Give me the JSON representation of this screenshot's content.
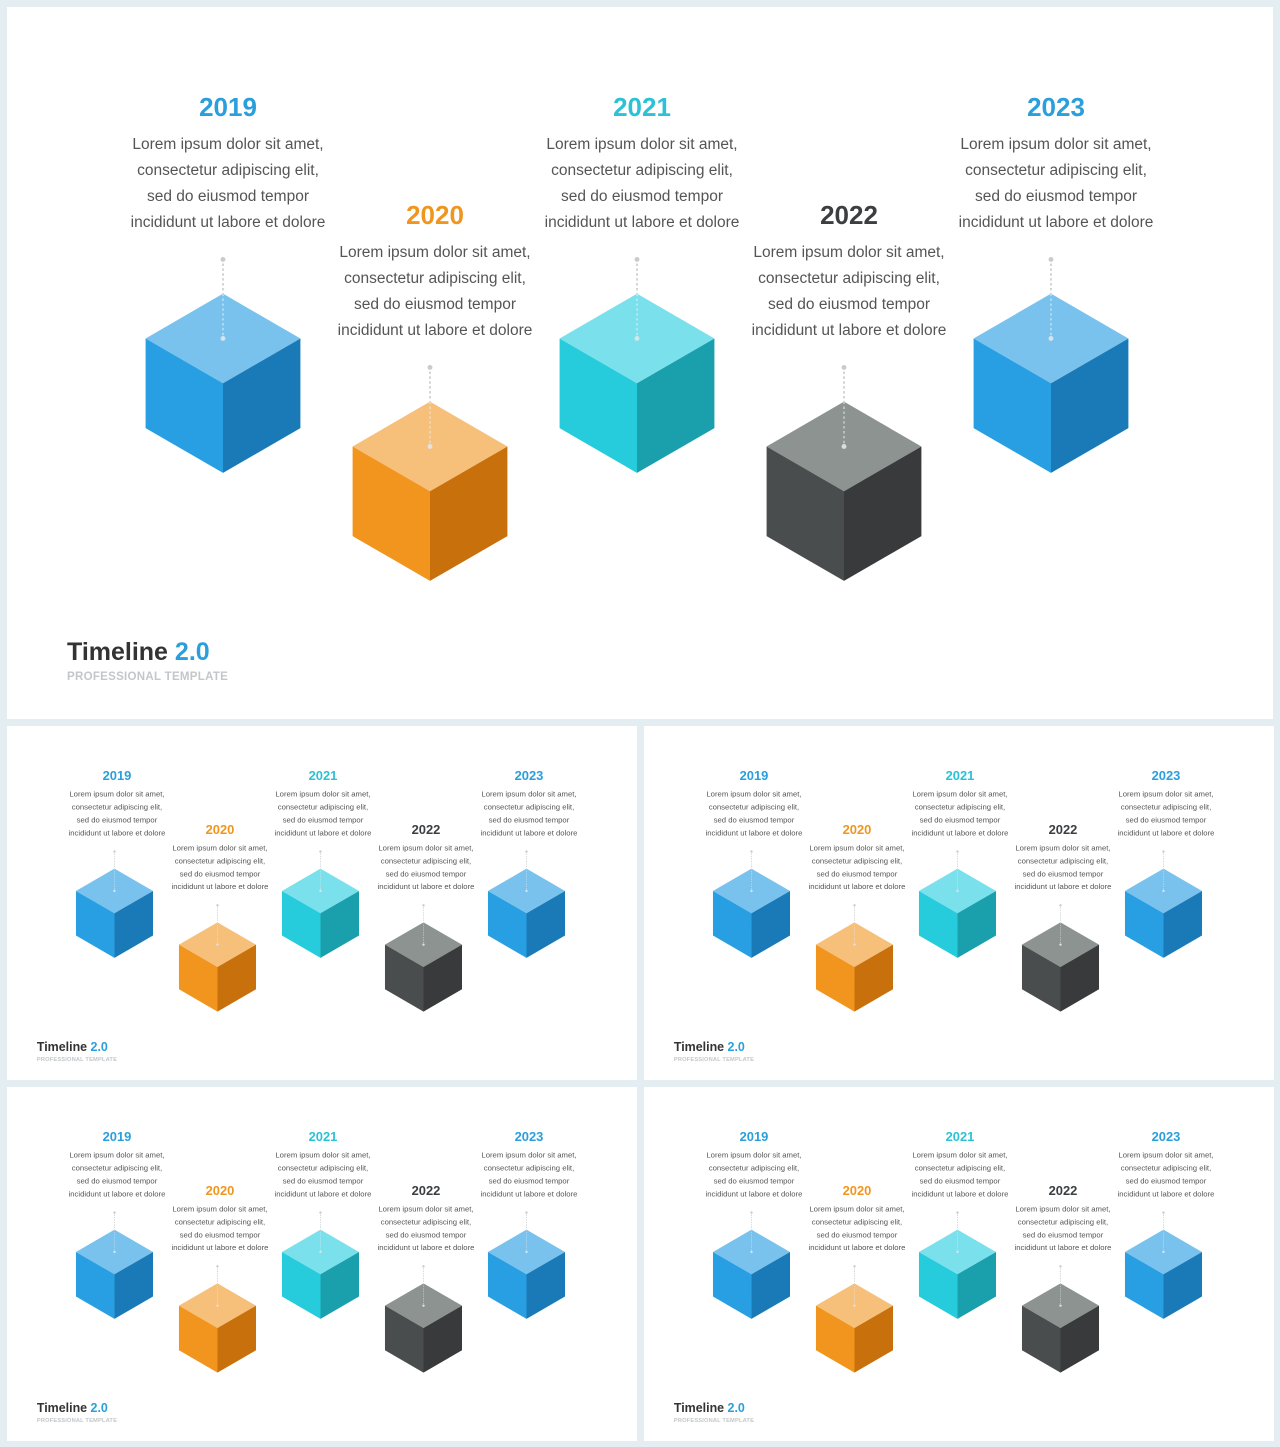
{
  "brand": {
    "title": "Timeline",
    "version": "2.0",
    "subtitle": "PROFESSIONAL TEMPLATE"
  },
  "steps": [
    {
      "year": "2019",
      "year_color": "#2a9fdc",
      "lines": [
        "Lorem ipsum dolor sit amet,",
        "consectetur adipiscing elit,",
        "sed do eiusmod tempor",
        "incididunt ut labore et dolore"
      ],
      "cube_colors": {
        "top": "#79c2ee",
        "left": "#289fe2",
        "right": "#1a7ab7"
      }
    },
    {
      "year": "2020",
      "year_color": "#f0961f",
      "lines": [
        "Lorem ipsum dolor sit amet,",
        "consectetur adipiscing elit,",
        "sed do eiusmod tempor",
        "incididunt ut labore et dolore"
      ],
      "cube_colors": {
        "top": "#f6bf7a",
        "left": "#f2951e",
        "right": "#c8710c"
      }
    },
    {
      "year": "2021",
      "year_color": "#2cc2d6",
      "lines": [
        "Lorem ipsum dolor sit amet,",
        "consectetur adipiscing elit,",
        "sed do eiusmod tempor",
        "incididunt ut labore et dolore"
      ],
      "cube_colors": {
        "top": "#7ae1ec",
        "left": "#27ccdc",
        "right": "#1a9fac"
      }
    },
    {
      "year": "2022",
      "year_color": "#3b3f42",
      "lines": [
        "Lorem ipsum dolor sit amet,",
        "consectetur adipiscing elit,",
        "sed do eiusmod tempor",
        "incididunt ut labore et dolore"
      ],
      "cube_colors": {
        "top": "#8d9390",
        "left": "#4a4d4e",
        "right": "#383a3b"
      }
    },
    {
      "year": "2023",
      "year_color": "#2a9fdc",
      "lines": [
        "Lorem ipsum dolor sit amet,",
        "consectetur adipiscing elit,",
        "sed do eiusmod tempor",
        "incididunt ut labore et dolore"
      ],
      "cube_colors": {
        "top": "#79c2ee",
        "left": "#289fe2",
        "right": "#1a7ab7"
      }
    }
  ]
}
